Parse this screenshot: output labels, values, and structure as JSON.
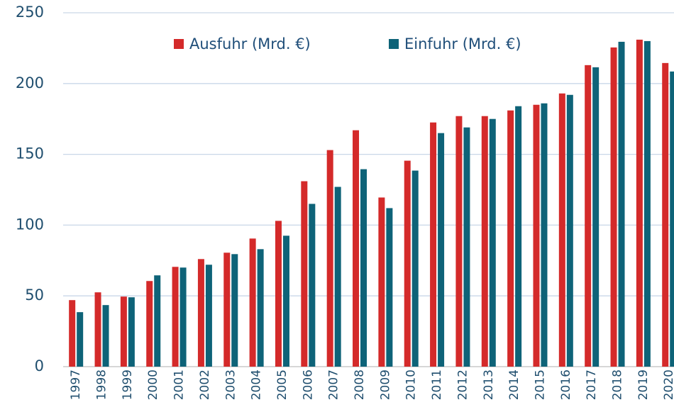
{
  "chart_data": {
    "type": "bar",
    "categories": [
      "1997",
      "1998",
      "1999",
      "2000",
      "2001",
      "2002",
      "2003",
      "2004",
      "2005",
      "2006",
      "2007",
      "2008",
      "2009",
      "2010",
      "2011",
      "2012",
      "2013",
      "2014",
      "2015",
      "2016",
      "2017",
      "2018",
      "2019",
      "2020"
    ],
    "series": [
      {
        "name": "Ausfuhr (Mrd. €)",
        "color": "#d42a2a",
        "values": [
          47,
          52.5,
          49.5,
          60.5,
          70.5,
          76,
          80.5,
          90.5,
          103,
          131,
          153,
          167,
          119.5,
          145.5,
          172.5,
          177,
          177,
          181,
          185,
          193,
          213,
          225.5,
          231,
          214.5
        ]
      },
      {
        "name": "Einfuhr (Mrd. €)",
        "color": "#0e6378",
        "values": [
          38.5,
          43.5,
          49,
          64.5,
          70,
          72,
          79.5,
          83,
          92.5,
          115,
          127,
          139.5,
          112,
          138.5,
          165,
          169,
          175,
          184,
          186,
          192,
          211.5,
          229.5,
          230,
          208.5
        ]
      }
    ],
    "ylim": [
      0,
      250
    ],
    "yticks": [
      0,
      50,
      100,
      150,
      200,
      250
    ],
    "grid": true,
    "legend": "top"
  }
}
